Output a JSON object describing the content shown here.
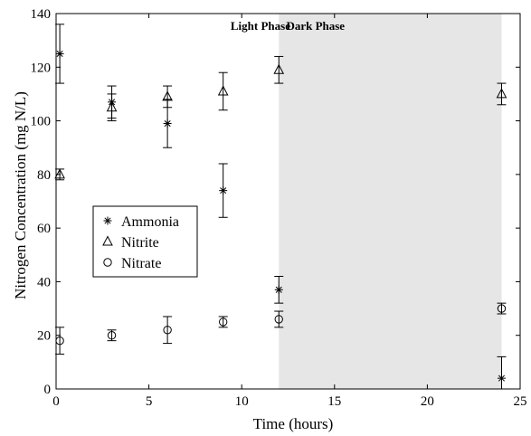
{
  "chart_data": {
    "type": "scatter",
    "xlabel": "Time (hours)",
    "ylabel": "Nitrogen Concentration (mg N/L)",
    "xlim": [
      0,
      25
    ],
    "ylim": [
      0,
      140
    ],
    "xticks": [
      0,
      5,
      10,
      15,
      20,
      25
    ],
    "yticks": [
      0,
      20,
      40,
      60,
      80,
      100,
      120,
      140
    ],
    "grid": false,
    "legend_position": "middle-left",
    "shaded_region": {
      "x_start": 12,
      "x_end": 24,
      "color": "#e6e6e6"
    },
    "annotations": [
      {
        "text": "Light Phase",
        "x": 9.4,
        "y": 134
      },
      {
        "text": "Dark Phase",
        "x": 12.4,
        "y": 134
      }
    ],
    "series": [
      {
        "name": "Ammonia",
        "marker": "asterisk",
        "points": [
          {
            "x": 0.2,
            "y": 125,
            "err": 11
          },
          {
            "x": 3,
            "y": 107,
            "err": 6
          },
          {
            "x": 6,
            "y": 99,
            "err": 9
          },
          {
            "x": 9,
            "y": 74,
            "err": 10
          },
          {
            "x": 12,
            "y": 37,
            "err": 5
          },
          {
            "x": 24,
            "y": 4,
            "err": 8
          }
        ]
      },
      {
        "name": "Nitrite",
        "marker": "triangle",
        "points": [
          {
            "x": 0.2,
            "y": 80,
            "err": 2
          },
          {
            "x": 3,
            "y": 105,
            "err": 5
          },
          {
            "x": 6,
            "y": 109,
            "err": 4
          },
          {
            "x": 9,
            "y": 111,
            "err": 7
          },
          {
            "x": 12,
            "y": 119,
            "err": 5
          },
          {
            "x": 24,
            "y": 110,
            "err": 4
          }
        ]
      },
      {
        "name": "Nitrate",
        "marker": "circle",
        "points": [
          {
            "x": 0.2,
            "y": 18,
            "err": 5
          },
          {
            "x": 3,
            "y": 20,
            "err": 2
          },
          {
            "x": 6,
            "y": 22,
            "err": 5
          },
          {
            "x": 9,
            "y": 25,
            "err": 2
          },
          {
            "x": 12,
            "y": 26,
            "err": 3
          },
          {
            "x": 24,
            "y": 30,
            "err": 2
          }
        ]
      }
    ]
  }
}
